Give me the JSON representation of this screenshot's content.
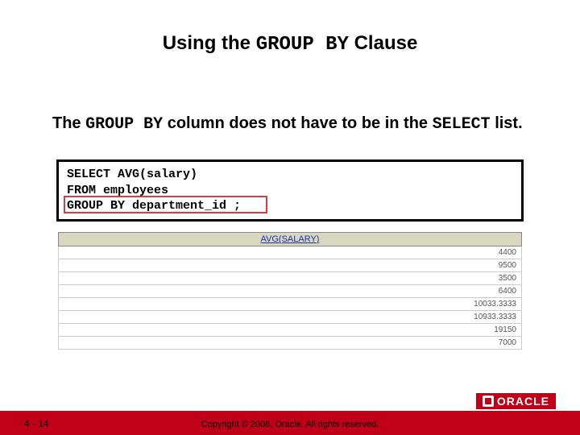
{
  "title": {
    "prefix": "Using the ",
    "code": "GROUP BY",
    "suffix": " Clause"
  },
  "subtitle": {
    "prefix": "The ",
    "code1": "GROUP BY",
    "mid": " column does not have to be in the ",
    "code2": "SELECT",
    "suffix": " list."
  },
  "sql": {
    "line1_kw": "SELECT   ",
    "line1_rest": "AVG(salary)",
    "line2_kw": "FROM     ",
    "line2_rest": "employees",
    "line3_kw": "GROUP BY ",
    "line3_rest": "department_id ;",
    "highlight_color": "#d04040"
  },
  "table": {
    "header": "AVG(SALARY)",
    "header_bg": "#d8d8c0",
    "header_text_color": "#2030a0",
    "rows": [
      "4400",
      "9500",
      "3500",
      "6400",
      "10033.3333",
      "10933.3333",
      "19150",
      "7000"
    ]
  },
  "footer": {
    "page": "4 - 14",
    "copyright": "Copyright © 2006, Oracle. All rights reserved.",
    "logo": "ORACLE",
    "bar_color": "#c00018"
  }
}
